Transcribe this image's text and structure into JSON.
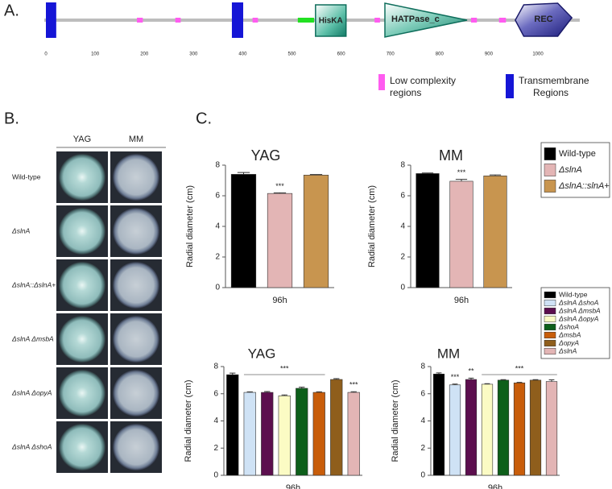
{
  "figure": {
    "panel_labels": [
      "A.",
      "B.",
      "C."
    ]
  },
  "domain_diagram": {
    "length": 1085,
    "scale_ticks": [
      0,
      100,
      200,
      300,
      400,
      500,
      600,
      700,
      800,
      900,
      1000
    ],
    "features": [
      {
        "kind": "transmembrane",
        "start": 0,
        "end": 21
      },
      {
        "kind": "low_complexity",
        "start": 185,
        "end": 197
      },
      {
        "kind": "low_complexity",
        "start": 263,
        "end": 274
      },
      {
        "kind": "transmembrane",
        "start": 378,
        "end": 401
      },
      {
        "kind": "low_complexity",
        "start": 420,
        "end": 431
      },
      {
        "kind": "segment",
        "start": 512,
        "end": 545
      },
      {
        "kind": "domain",
        "name": "HisKA",
        "start": 548,
        "end": 610
      },
      {
        "kind": "low_complexity",
        "start": 668,
        "end": 679
      },
      {
        "kind": "domain",
        "name": "HATPase_c",
        "start": 689,
        "end": 856
      },
      {
        "kind": "low_complexity",
        "start": 864,
        "end": 876
      },
      {
        "kind": "low_complexity",
        "start": 921,
        "end": 935
      },
      {
        "kind": "domain",
        "name": "REC",
        "start": 954,
        "end": 1069
      }
    ],
    "legend": [
      {
        "kind": "low_complexity",
        "label": "Low complexity regions"
      },
      {
        "kind": "transmembrane",
        "label": "Transmembrane Regions"
      }
    ]
  },
  "plates": {
    "columns": [
      "YAG",
      "MM"
    ],
    "rows": [
      "Wild-type",
      "ΔslnA",
      "ΔslnA::ΔslnA+",
      "ΔslnA ΔmsbA",
      "ΔslnA ΔopyA",
      "ΔslnA ΔshoA"
    ]
  },
  "chart_data": [
    {
      "type": "bar",
      "title": "YAG",
      "ylabel": "Radial diameter (cm)",
      "categories": [
        "96h"
      ],
      "ylim": [
        0,
        8
      ],
      "yticks": [
        0,
        2,
        4,
        6,
        8
      ],
      "series": [
        {
          "color": "#000000",
          "values": [
            7.4
          ],
          "errors": [
            0.12
          ]
        },
        {
          "color": "#e3b5b5",
          "values": [
            6.15
          ],
          "errors": [
            0.04
          ]
        },
        {
          "color": "#c8954f",
          "values": [
            7.35
          ],
          "errors": [
            0.04
          ]
        }
      ],
      "annotations": [
        {
          "text": "***",
          "series": 1
        }
      ]
    },
    {
      "type": "bar",
      "title": "MM",
      "ylabel": "Radial diameter (cm)",
      "categories": [
        "96h"
      ],
      "ylim": [
        0,
        8
      ],
      "yticks": [
        0,
        2,
        4,
        6,
        8
      ],
      "legend": true,
      "series": [
        {
          "name": "Wild-type",
          "color": "#000000",
          "values": [
            7.45
          ],
          "errors": [
            0.04
          ]
        },
        {
          "name": "ΔslnA",
          "color": "#e3b5b5",
          "values": [
            6.95
          ],
          "errors": [
            0.12
          ]
        },
        {
          "name": "ΔslnA::slnA+",
          "color": "#c8954f",
          "values": [
            7.3
          ],
          "errors": [
            0.06
          ]
        }
      ],
      "annotations": [
        {
          "text": "***",
          "series": 1
        }
      ]
    },
    {
      "type": "bar",
      "title": "YAG",
      "ylabel": "Radial diameter (cm)",
      "categories": [
        "96h"
      ],
      "ylim": [
        0,
        8
      ],
      "yticks": [
        0,
        2,
        4,
        6,
        8
      ],
      "series": [
        {
          "color": "#000000",
          "values": [
            7.4
          ],
          "errors": [
            0.12
          ]
        },
        {
          "color": "#cfe2f5",
          "values": [
            6.1
          ],
          "errors": [
            0.04
          ]
        },
        {
          "color": "#5c0e4e",
          "values": [
            6.1
          ],
          "errors": [
            0.06
          ]
        },
        {
          "color": "#fbfbc4",
          "values": [
            5.85
          ],
          "errors": [
            0.06
          ]
        },
        {
          "color": "#0d5f1a",
          "values": [
            6.4
          ],
          "errors": [
            0.08
          ]
        },
        {
          "color": "#c85d0a",
          "values": [
            6.1
          ],
          "errors": [
            0.04
          ]
        },
        {
          "color": "#8f5e1c",
          "values": [
            7.05
          ],
          "errors": [
            0.06
          ]
        },
        {
          "color": "#e3b5b5",
          "values": [
            6.1
          ],
          "errors": [
            0.05
          ]
        }
      ],
      "annotations": [
        {
          "text": "***",
          "from": 1,
          "to": 5
        },
        {
          "text": "***",
          "series": 7
        }
      ]
    },
    {
      "type": "bar",
      "title": "MM",
      "ylabel": "Radial diameter (cm)",
      "categories": [
        "96h"
      ],
      "ylim": [
        0,
        8
      ],
      "yticks": [
        0,
        2,
        4,
        6,
        8
      ],
      "legend": true,
      "series": [
        {
          "name": "Wild-type",
          "color": "#000000",
          "values": [
            7.45
          ],
          "errors": [
            0.08
          ]
        },
        {
          "name": "ΔslnA ΔshoA",
          "color": "#cfe2f5",
          "values": [
            6.65
          ],
          "errors": [
            0.06
          ]
        },
        {
          "name": "ΔslnA ΔmsbA",
          "color": "#5c0e4e",
          "values": [
            7.05
          ],
          "errors": [
            0.1
          ]
        },
        {
          "name": "ΔslnA ΔopyA",
          "color": "#fbfbc4",
          "values": [
            6.7
          ],
          "errors": [
            0.04
          ]
        },
        {
          "name": "ΔshoA",
          "color": "#0d5f1a",
          "values": [
            7.0
          ],
          "errors": [
            0.04
          ]
        },
        {
          "name": "ΔmsbA",
          "color": "#c85d0a",
          "values": [
            6.8
          ],
          "errors": [
            0.04
          ]
        },
        {
          "name": "ΔopyA",
          "color": "#8f5e1c",
          "values": [
            7.0
          ],
          "errors": [
            0.04
          ]
        },
        {
          "name": "ΔslnA",
          "color": "#e3b5b5",
          "values": [
            6.9
          ],
          "errors": [
            0.12
          ]
        }
      ],
      "annotations": [
        {
          "text": "***",
          "series": 1
        },
        {
          "text": "**",
          "series": 2
        },
        {
          "text": "***",
          "from": 3,
          "to": 7
        }
      ]
    }
  ]
}
